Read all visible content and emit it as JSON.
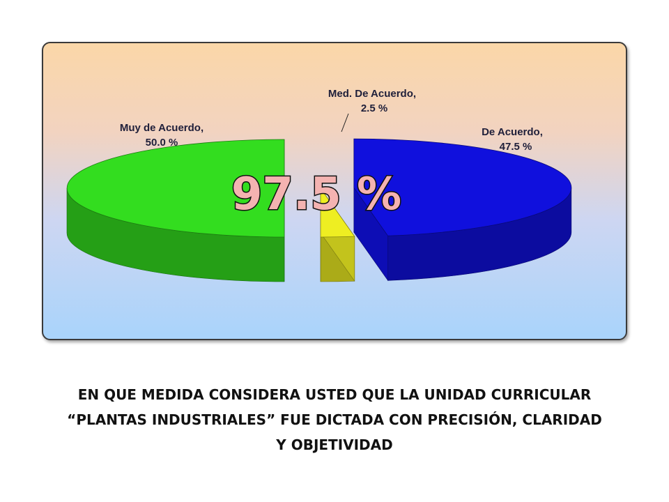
{
  "chart_data": {
    "type": "pie",
    "title": "",
    "center_label": "97.5 %",
    "slices": [
      {
        "name": "Muy de Acuerdo",
        "value": 50.0,
        "label_name": "Muy de Acuerdo,",
        "label_value": "50.0 %",
        "color": "#33dd1f"
      },
      {
        "name": "Med. De Acuerdo",
        "value": 2.5,
        "label_name": "Med. De Acuerdo,",
        "label_value": "2.5 %",
        "color": "#eeee22"
      },
      {
        "name": "De Acuerdo",
        "value": 47.5,
        "label_name": "De Acuerdo,",
        "label_value": "47.5 %",
        "color": "#1010dd"
      }
    ]
  },
  "caption": {
    "line1": "EN QUE MEDIDA CONSIDERA  USTED QUE LA UNIDAD CURRICULAR",
    "line2": "“PLANTAS INDUSTRIALES” FUE DICTADA CON PRECISIÓN, CLARIDAD",
    "line3": "Y OBJETIVIDAD"
  }
}
